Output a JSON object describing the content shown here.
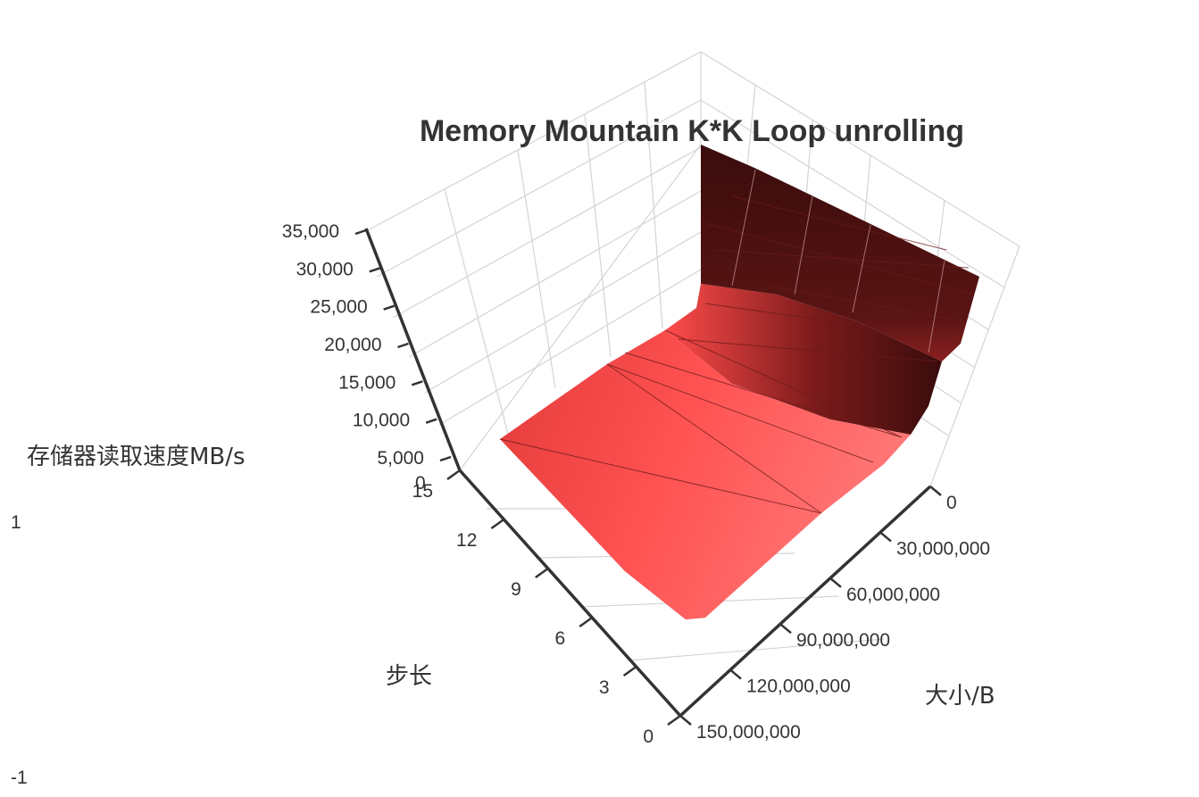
{
  "chart_data": {
    "type": "surface",
    "title": "Memory Mountain K*K Loop unrolling",
    "zlabel": "存储器读取速度MB/s",
    "ylabel": "步长",
    "xlabel": "大小/B",
    "z_ticks": [
      "5,000",
      "10,000",
      "15,000",
      "20,000",
      "25,000",
      "30,000",
      "35,000"
    ],
    "y_ticks": [
      "0",
      "3",
      "6",
      "9",
      "12",
      "15"
    ],
    "x_ticks": [
      "0",
      "30,000,000",
      "60,000,000",
      "90,000,000",
      "120,000,000",
      "150,000,000"
    ],
    "zlim": [
      0,
      35000
    ],
    "ylim": [
      0,
      15
    ],
    "xlim": [
      0,
      150000000
    ],
    "colorscale": [
      "#3a0d0d",
      "#ff4444",
      "#ff7a7a"
    ],
    "grid": true,
    "slider_labels": {
      "top": "1",
      "bottom": "-1"
    },
    "z_zero_tick": "0",
    "series_summary": {
      "peak_value": 33000,
      "plateau_value": 6000,
      "description_points": [
        {
          "size": 0,
          "stride": 15,
          "speed": 33000
        },
        {
          "size": 0,
          "stride": 1,
          "speed": 32000
        },
        {
          "size": 5000000,
          "stride": 15,
          "speed": 10000
        },
        {
          "size": 30000000,
          "stride": 15,
          "speed": 6000
        },
        {
          "size": 150000000,
          "stride": 15,
          "speed": 5500
        },
        {
          "size": 150000000,
          "stride": 1,
          "speed": 5500
        }
      ]
    }
  }
}
